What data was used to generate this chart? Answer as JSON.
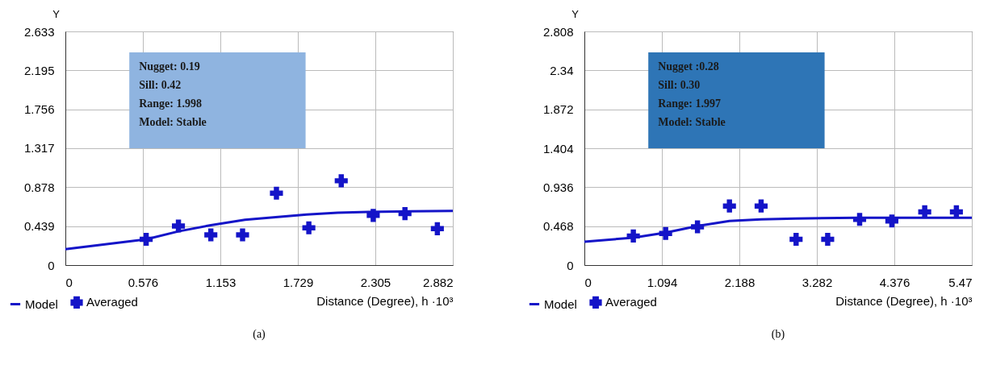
{
  "chart_data": [
    {
      "type": "line",
      "title": "(a)",
      "xlabel": "Distance (Degree), h ·10³",
      "ylabel": "Y",
      "xlim": [
        0,
        2.882
      ],
      "ylim": [
        0,
        2.633
      ],
      "xticks": [
        0,
        0.576,
        1.153,
        1.729,
        2.305,
        2.882
      ],
      "yticks": [
        0,
        0.439,
        0.878,
        1.317,
        1.756,
        2.195,
        2.633
      ],
      "grid": true,
      "legend": "bottom left",
      "annotations": [
        "Nugget: 0.19",
        "Sill: 0.42",
        "Range: 1.998",
        "Model: Stable"
      ],
      "series": [
        {
          "name": "Model",
          "color": "#1414c8",
          "line_style": "solid",
          "x": [
            0,
            0.601,
            0.841,
            1.082,
            1.336,
            1.565,
            1.795,
            2.025,
            2.254,
            2.882
          ],
          "values": [
            0.18,
            0.29,
            0.38,
            0.45,
            0.51,
            0.54,
            0.57,
            0.59,
            0.6,
            0.61
          ]
        },
        {
          "name": "Averaged",
          "type": "scatter",
          "marker": "cross",
          "color": "#1414c8",
          "x": [
            0.601,
            0.841,
            1.082,
            1.318,
            1.57,
            1.811,
            2.052,
            2.29,
            2.526,
            2.767
          ],
          "values": [
            0.29,
            0.44,
            0.34,
            0.34,
            0.81,
            0.42,
            0.95,
            0.56,
            0.58,
            0.41
          ]
        }
      ]
    },
    {
      "type": "line",
      "title": "(b)",
      "xlabel": "Distance (Degree), h ·10³",
      "ylabel": "Y",
      "xlim": [
        0,
        5.47
      ],
      "ylim": [
        0,
        2.808
      ],
      "xticks": [
        0,
        1.094,
        2.188,
        3.282,
        4.376,
        5.47
      ],
      "yticks": [
        0,
        0.468,
        0.936,
        1.404,
        1.872,
        2.34,
        2.808
      ],
      "grid": true,
      "legend": "bottom left",
      "annotations": [
        "Nugget :0.28",
        "Sill: 0.30",
        "Range: 1.997",
        "Model: Stable"
      ],
      "series": [
        {
          "name": "Model",
          "color": "#1414c8",
          "line_style": "solid",
          "x": [
            0,
            0.691,
            1.147,
            1.597,
            2.048,
            2.495,
            2.976,
            3.851,
            5.47
          ],
          "values": [
            0.28,
            0.33,
            0.39,
            0.47,
            0.53,
            0.55,
            0.56,
            0.57,
            0.57
          ]
        },
        {
          "name": "Averaged",
          "type": "scatter",
          "marker": "cross",
          "color": "#1414c8",
          "x": [
            0.691,
            1.147,
            1.597,
            2.048,
            2.495,
            2.989,
            3.435,
            3.886,
            4.341,
            4.805,
            5.252
          ],
          "values": [
            0.35,
            0.38,
            0.46,
            0.71,
            0.71,
            0.31,
            0.31,
            0.55,
            0.53,
            0.64,
            0.64
          ]
        }
      ]
    }
  ]
}
